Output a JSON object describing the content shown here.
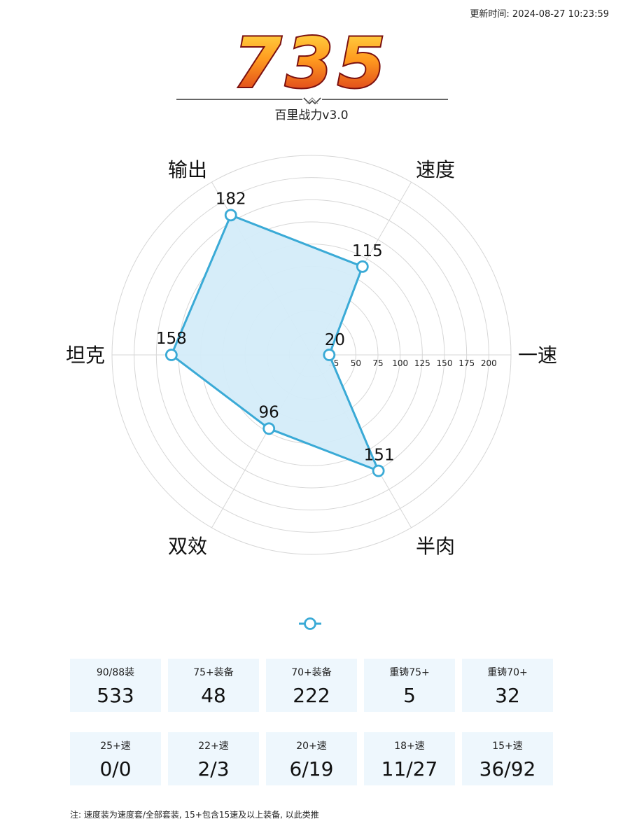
{
  "header": {
    "updated_text": "更新时间: 2024-08-27 10:23:59",
    "score": "735",
    "subtitle": "百里战力v3.0"
  },
  "colors": {
    "series_stroke": "#3aaad6",
    "series_fill": "#d4ecf9",
    "card_bg": "#eef7fd",
    "grid": "#d6d6d6",
    "score_gradient_top": "#ffd43b",
    "score_gradient_bottom": "#e0301e"
  },
  "chart_data": {
    "type": "radar",
    "axes": [
      "一速",
      "速度",
      "输出",
      "坦克",
      "双效",
      "半肉"
    ],
    "values": [
      20,
      115,
      182,
      158,
      96,
      151
    ],
    "value_labels": [
      "20",
      "115",
      "182",
      "158",
      "96",
      "151"
    ],
    "radial_ticks": [
      25,
      50,
      75,
      100,
      125,
      150,
      175,
      200
    ],
    "rmax": 225,
    "grid": true
  },
  "stats": {
    "row1": [
      {
        "label": "90/88装",
        "value": "533"
      },
      {
        "label": "75+装备",
        "value": "48"
      },
      {
        "label": "70+装备",
        "value": "222"
      },
      {
        "label": "重铸75+",
        "value": "5"
      },
      {
        "label": "重铸70+",
        "value": "32"
      }
    ],
    "row2": [
      {
        "label": "25+速",
        "value": "0/0"
      },
      {
        "label": "22+速",
        "value": "2/3"
      },
      {
        "label": "20+速",
        "value": "6/19"
      },
      {
        "label": "18+速",
        "value": "11/27"
      },
      {
        "label": "15+速",
        "value": "36/92"
      }
    ]
  },
  "footer": {
    "note": "注: 速度装为速度套/全部套装, 15+包含15速及以上装备, 以此类推"
  }
}
